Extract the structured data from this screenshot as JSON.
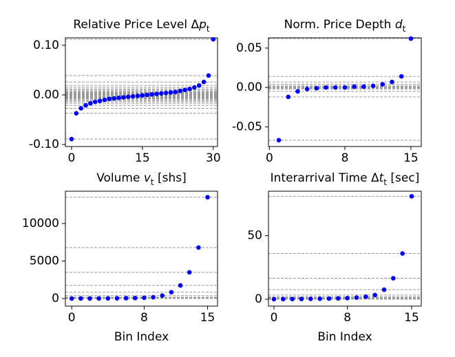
{
  "chart_data": [
    {
      "type": "scatter",
      "title": [
        {
          "text": "Relative Price Level Δ"
        },
        {
          "text": "p",
          "italic": true
        },
        {
          "text": "t",
          "sub": true
        }
      ],
      "x": [
        0,
        1,
        2,
        3,
        4,
        5,
        6,
        7,
        8,
        9,
        10,
        11,
        12,
        13,
        14,
        15,
        16,
        17,
        18,
        19,
        20,
        21,
        22,
        23,
        24,
        25,
        26,
        27,
        28,
        29,
        30
      ],
      "values": [
        -0.089,
        -0.037,
        -0.027,
        -0.021,
        -0.017,
        -0.014,
        -0.012,
        -0.01,
        -0.008,
        -0.007,
        -0.006,
        -0.005,
        -0.004,
        -0.003,
        -0.002,
        -0.001,
        0.0,
        0.001,
        0.002,
        0.003,
        0.004,
        0.005,
        0.006,
        0.008,
        0.01,
        0.012,
        0.015,
        0.019,
        0.026,
        0.039,
        0.112
      ],
      "color": "#0000ff",
      "hlines_color": "#999999",
      "xlim": [
        -1.3,
        30.9
      ],
      "xticks": [
        0,
        15,
        30
      ],
      "ylim": [
        -0.104,
        0.115
      ],
      "yticks": [
        {
          "value": -0.1,
          "label": "-0.10"
        },
        {
          "value": 0,
          "label": "0.00"
        },
        {
          "value": 0.1,
          "label": "0.10"
        }
      ]
    },
    {
      "type": "scatter",
      "title": [
        {
          "text": "Norm. Price Depth "
        },
        {
          "text": "d",
          "italic": true
        },
        {
          "text": "t",
          "sub": true
        }
      ],
      "x": [
        1,
        2,
        3,
        4,
        5,
        6,
        7,
        8,
        9,
        10,
        11,
        12,
        13,
        14,
        15
      ],
      "values": [
        -0.067,
        -0.012,
        -0.005,
        -0.002,
        -0.001,
        0.0,
        0.0,
        0.0,
        0.001,
        0.001,
        0.002,
        0.004,
        0.007,
        0.014,
        0.062
      ],
      "color": "#0000ff",
      "hlines_color": "#999999",
      "xlim": [
        -0.1,
        16.1
      ],
      "xticks": [
        0,
        8,
        15
      ],
      "ylim": [
        -0.075,
        0.063
      ],
      "yticks": [
        {
          "value": -0.05,
          "label": "-0.05"
        },
        {
          "value": 0,
          "label": "0.00"
        },
        {
          "value": 0.05,
          "label": "0.05"
        }
      ]
    },
    {
      "type": "scatter",
      "title": [
        {
          "text": "Volume "
        },
        {
          "text": "v",
          "italic": true
        },
        {
          "text": "t",
          "sub": true
        },
        {
          "text": " [shs]"
        }
      ],
      "xlabel": "Bin Index",
      "x": [
        0,
        1,
        2,
        3,
        4,
        5,
        6,
        7,
        8,
        9,
        10,
        11,
        12,
        13,
        14,
        15
      ],
      "values": [
        5,
        10,
        15,
        20,
        30,
        40,
        55,
        75,
        110,
        180,
        400,
        850,
        1750,
        3500,
        6800,
        13500
      ],
      "color": "#0000ff",
      "hlines_color": "#999999",
      "xlim": [
        -0.7,
        16.1
      ],
      "xticks": [
        0,
        8,
        15
      ],
      "ylim": [
        -1000,
        14300
      ],
      "yticks": [
        0,
        5000,
        10000
      ]
    },
    {
      "type": "scatter",
      "title": [
        {
          "text": "Interarrival Time Δ"
        },
        {
          "text": "t",
          "italic": true
        },
        {
          "text": "t",
          "sub": true
        },
        {
          "text": " [sec]"
        }
      ],
      "xlabel": "Bin Index",
      "x": [
        0,
        1,
        2,
        3,
        4,
        5,
        6,
        7,
        8,
        9,
        10,
        11,
        12,
        13,
        14,
        15
      ],
      "values": [
        0.05,
        0.1,
        0.15,
        0.2,
        0.3,
        0.4,
        0.5,
        0.7,
        0.9,
        1.3,
        2,
        3.3,
        7.5,
        16.5,
        36,
        81
      ],
      "color": "#0000ff",
      "hlines_color": "#999999",
      "xlim": [
        -0.6,
        16.05
      ],
      "xticks": [
        0,
        8,
        15
      ],
      "ylim": [
        -5.4,
        85
      ],
      "yticks": [
        0,
        50
      ]
    }
  ]
}
